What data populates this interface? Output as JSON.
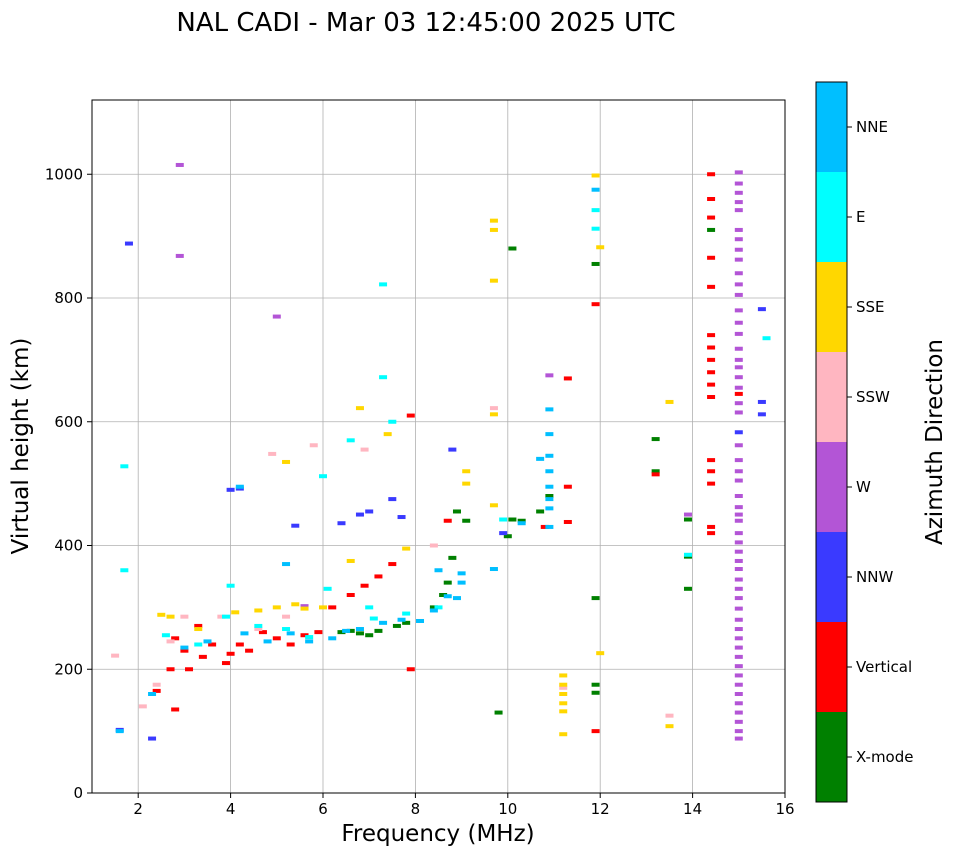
{
  "chart_data": {
    "type": "scatter",
    "title": "NAL CADI - Mar 03 12:45:00 2025 UTC",
    "xlabel": "Frequency (MHz)",
    "ylabel": "Virtual height (km)",
    "xlim": [
      1,
      16
    ],
    "ylim": [
      0,
      1120
    ],
    "xticks": [
      2,
      4,
      6,
      8,
      10,
      12,
      14,
      16
    ],
    "yticks": [
      0,
      200,
      400,
      600,
      800,
      1000
    ],
    "grid": true,
    "colorbar": {
      "label": "Azimuth Direction",
      "categories": [
        {
          "name": "X-mode",
          "color": "#008000"
        },
        {
          "name": "Vertical",
          "color": "#ff0000"
        },
        {
          "name": "NNW",
          "color": "#3a3aff"
        },
        {
          "name": "W",
          "color": "#b355d6"
        },
        {
          "name": "SSW",
          "color": "#ffb6c1"
        },
        {
          "name": "SSE",
          "color": "#ffd700"
        },
        {
          "name": "E",
          "color": "#00ffff"
        },
        {
          "name": "NNE",
          "color": "#00bfff"
        }
      ]
    },
    "series": [
      {
        "name": "X-mode",
        "points": [
          [
            6.4,
            260
          ],
          [
            6.8,
            258
          ],
          [
            7.2,
            262
          ],
          [
            7.6,
            270
          ],
          [
            7.8,
            275
          ],
          [
            8.4,
            300
          ],
          [
            8.6,
            320
          ],
          [
            8.7,
            340
          ],
          [
            8.8,
            380
          ],
          [
            8.9,
            455
          ],
          [
            9.1,
            440
          ],
          [
            10.0,
            415
          ],
          [
            10.1,
            442
          ],
          [
            10.3,
            440
          ],
          [
            10.7,
            455
          ],
          [
            10.9,
            480
          ],
          [
            11.9,
            855
          ],
          [
            11.9,
            315
          ],
          [
            11.9,
            175
          ],
          [
            11.9,
            162
          ],
          [
            13.2,
            520
          ],
          [
            13.2,
            572
          ],
          [
            13.9,
            442
          ],
          [
            13.9,
            382
          ],
          [
            13.9,
            330
          ],
          [
            14.4,
            910
          ],
          [
            9.8,
            130
          ],
          [
            10.1,
            880
          ],
          [
            6.6,
            262
          ],
          [
            7.0,
            255
          ]
        ]
      },
      {
        "name": "Vertical",
        "points": [
          [
            2.4,
            165
          ],
          [
            2.7,
            200
          ],
          [
            2.8,
            250
          ],
          [
            3.0,
            230
          ],
          [
            3.1,
            200
          ],
          [
            3.3,
            270
          ],
          [
            3.6,
            240
          ],
          [
            3.9,
            210
          ],
          [
            4.0,
            225
          ],
          [
            4.2,
            240
          ],
          [
            4.4,
            230
          ],
          [
            4.7,
            260
          ],
          [
            5.0,
            250
          ],
          [
            5.3,
            240
          ],
          [
            5.6,
            255
          ],
          [
            5.9,
            260
          ],
          [
            6.2,
            300
          ],
          [
            6.6,
            320
          ],
          [
            6.9,
            335
          ],
          [
            7.2,
            350
          ],
          [
            7.5,
            370
          ],
          [
            7.9,
            200
          ],
          [
            7.9,
            610
          ],
          [
            8.7,
            440
          ],
          [
            10.8,
            430
          ],
          [
            11.3,
            670
          ],
          [
            11.3,
            495
          ],
          [
            11.3,
            438
          ],
          [
            11.9,
            790
          ],
          [
            11.9,
            100
          ],
          [
            13.2,
            515
          ],
          [
            14.4,
            1000
          ],
          [
            14.4,
            960
          ],
          [
            14.4,
            930
          ],
          [
            14.4,
            865
          ],
          [
            14.4,
            818
          ],
          [
            14.4,
            740
          ],
          [
            14.4,
            720
          ],
          [
            14.4,
            700
          ],
          [
            14.4,
            680
          ],
          [
            14.4,
            660
          ],
          [
            14.4,
            640
          ],
          [
            14.4,
            520
          ],
          [
            14.4,
            500
          ],
          [
            14.4,
            538
          ],
          [
            14.4,
            430
          ],
          [
            14.4,
            420
          ],
          [
            15.0,
            645
          ],
          [
            2.8,
            135
          ],
          [
            3.4,
            220
          ]
        ]
      },
      {
        "name": "NNW",
        "points": [
          [
            1.8,
            888
          ],
          [
            2.3,
            88
          ],
          [
            1.6,
            102
          ],
          [
            4.0,
            490
          ],
          [
            5.4,
            432
          ],
          [
            6.4,
            436
          ],
          [
            6.8,
            450
          ],
          [
            7.0,
            455
          ],
          [
            7.5,
            475
          ],
          [
            7.7,
            446
          ],
          [
            8.8,
            555
          ],
          [
            9.9,
            420
          ],
          [
            15.5,
            782
          ],
          [
            15.5,
            632
          ],
          [
            15.5,
            612
          ],
          [
            15.0,
            583
          ],
          [
            4.2,
            492
          ]
        ]
      },
      {
        "name": "W",
        "points": [
          [
            2.9,
            1015
          ],
          [
            2.9,
            868
          ],
          [
            5.0,
            770
          ],
          [
            10.9,
            675
          ],
          [
            15.0,
            1003
          ],
          [
            15.0,
            985
          ],
          [
            15.0,
            970
          ],
          [
            15.0,
            955
          ],
          [
            15.0,
            942
          ],
          [
            15.0,
            910
          ],
          [
            15.0,
            895
          ],
          [
            15.0,
            878
          ],
          [
            15.0,
            862
          ],
          [
            15.0,
            840
          ],
          [
            15.0,
            822
          ],
          [
            15.0,
            805
          ],
          [
            15.0,
            780
          ],
          [
            15.0,
            760
          ],
          [
            15.0,
            742
          ],
          [
            15.0,
            718
          ],
          [
            15.0,
            700
          ],
          [
            15.0,
            688
          ],
          [
            15.0,
            672
          ],
          [
            15.0,
            655
          ],
          [
            15.0,
            630
          ],
          [
            15.0,
            615
          ],
          [
            15.0,
            562
          ],
          [
            15.0,
            538
          ],
          [
            15.0,
            520
          ],
          [
            15.0,
            505
          ],
          [
            15.0,
            480
          ],
          [
            15.0,
            462
          ],
          [
            15.0,
            450
          ],
          [
            15.0,
            440
          ],
          [
            15.0,
            420
          ],
          [
            15.0,
            405
          ],
          [
            15.0,
            390
          ],
          [
            15.0,
            375
          ],
          [
            15.0,
            362
          ],
          [
            15.0,
            345
          ],
          [
            15.0,
            330
          ],
          [
            15.0,
            315
          ],
          [
            15.0,
            298
          ],
          [
            15.0,
            280
          ],
          [
            15.0,
            265
          ],
          [
            15.0,
            250
          ],
          [
            15.0,
            235
          ],
          [
            15.0,
            220
          ],
          [
            15.0,
            205
          ],
          [
            15.0,
            190
          ],
          [
            15.0,
            175
          ],
          [
            15.0,
            160
          ],
          [
            15.0,
            145
          ],
          [
            15.0,
            130
          ],
          [
            15.0,
            115
          ],
          [
            15.0,
            100
          ],
          [
            15.0,
            88
          ],
          [
            13.9,
            450
          ],
          [
            5.6,
            302
          ]
        ]
      },
      {
        "name": "SSW",
        "points": [
          [
            1.5,
            222
          ],
          [
            2.1,
            140
          ],
          [
            2.4,
            175
          ],
          [
            3.0,
            285
          ],
          [
            3.8,
            285
          ],
          [
            4.6,
            265
          ],
          [
            5.2,
            285
          ],
          [
            5.8,
            562
          ],
          [
            6.9,
            555
          ],
          [
            8.4,
            400
          ],
          [
            9.7,
            622
          ],
          [
            11.2,
            170
          ],
          [
            13.5,
            125
          ],
          [
            2.7,
            245
          ],
          [
            4.9,
            548
          ]
        ]
      },
      {
        "name": "SSE",
        "points": [
          [
            2.5,
            288
          ],
          [
            3.3,
            265
          ],
          [
            4.1,
            292
          ],
          [
            4.6,
            295
          ],
          [
            5.0,
            300
          ],
          [
            5.4,
            305
          ],
          [
            5.6,
            298
          ],
          [
            6.0,
            300
          ],
          [
            6.6,
            375
          ],
          [
            6.8,
            622
          ],
          [
            7.4,
            580
          ],
          [
            7.8,
            395
          ],
          [
            9.1,
            520
          ],
          [
            9.1,
            500
          ],
          [
            9.7,
            925
          ],
          [
            9.7,
            910
          ],
          [
            9.7,
            828
          ],
          [
            9.7,
            465
          ],
          [
            9.7,
            612
          ],
          [
            11.2,
            190
          ],
          [
            11.2,
            175
          ],
          [
            11.2,
            160
          ],
          [
            11.2,
            145
          ],
          [
            11.2,
            132
          ],
          [
            11.2,
            95
          ],
          [
            12.0,
            882
          ],
          [
            12.0,
            226
          ],
          [
            13.5,
            632
          ],
          [
            13.5,
            108
          ],
          [
            11.9,
            998
          ],
          [
            2.7,
            285
          ],
          [
            5.2,
            535
          ]
        ]
      },
      {
        "name": "E",
        "points": [
          [
            1.7,
            528
          ],
          [
            1.7,
            360
          ],
          [
            2.6,
            255
          ],
          [
            3.3,
            240
          ],
          [
            3.9,
            285
          ],
          [
            4.0,
            335
          ],
          [
            4.6,
            270
          ],
          [
            5.2,
            265
          ],
          [
            5.7,
            252
          ],
          [
            6.1,
            330
          ],
          [
            6.6,
            570
          ],
          [
            7.0,
            300
          ],
          [
            7.1,
            282
          ],
          [
            7.3,
            822
          ],
          [
            7.3,
            672
          ],
          [
            7.5,
            600
          ],
          [
            7.8,
            290
          ],
          [
            8.5,
            300
          ],
          [
            9.9,
            442
          ],
          [
            11.9,
            942
          ],
          [
            11.9,
            912
          ],
          [
            13.9,
            385
          ],
          [
            15.6,
            735
          ],
          [
            6.0,
            512
          ]
        ]
      },
      {
        "name": "NNE",
        "points": [
          [
            1.6,
            100
          ],
          [
            2.3,
            160
          ],
          [
            3.0,
            235
          ],
          [
            3.5,
            245
          ],
          [
            4.3,
            258
          ],
          [
            4.8,
            245
          ],
          [
            5.3,
            258
          ],
          [
            5.7,
            245
          ],
          [
            6.2,
            250
          ],
          [
            6.5,
            262
          ],
          [
            6.8,
            265
          ],
          [
            7.3,
            275
          ],
          [
            7.7,
            280
          ],
          [
            8.1,
            278
          ],
          [
            8.4,
            295
          ],
          [
            8.7,
            318
          ],
          [
            8.9,
            315
          ],
          [
            9.0,
            355
          ],
          [
            9.0,
            340
          ],
          [
            8.5,
            360
          ],
          [
            10.3,
            436
          ],
          [
            10.9,
            620
          ],
          [
            10.9,
            580
          ],
          [
            10.9,
            545
          ],
          [
            10.9,
            520
          ],
          [
            10.9,
            495
          ],
          [
            10.9,
            475
          ],
          [
            10.9,
            460
          ],
          [
            10.7,
            540
          ],
          [
            10.9,
            430
          ],
          [
            11.9,
            975
          ],
          [
            9.7,
            362
          ],
          [
            4.2,
            495
          ],
          [
            5.2,
            370
          ]
        ]
      }
    ]
  }
}
